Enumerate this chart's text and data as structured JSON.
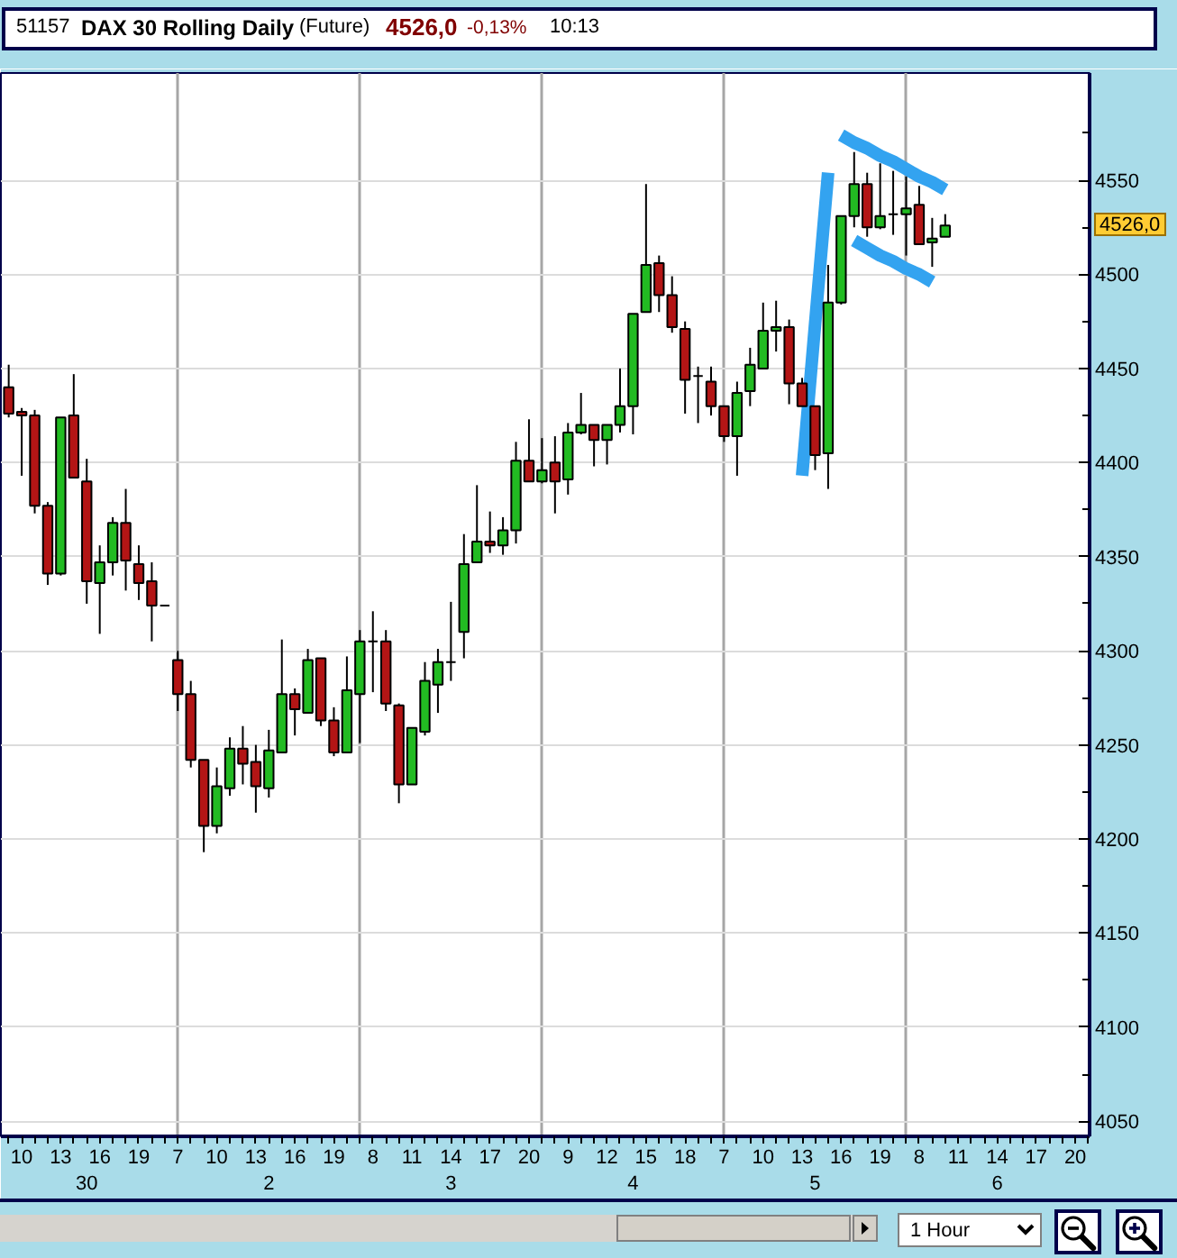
{
  "chart_data": {
    "type": "candlestick",
    "title": "DAX 30 Rolling Daily",
    "subtitle": "(Future)",
    "annotations": [
      "51157",
      "4526,0",
      "-0,13%",
      "10:13",
      "1 Hour",
      "4526,0"
    ],
    "categories": [
      null,
      "10",
      null,
      null,
      "13",
      null,
      "\n30",
      "16",
      null,
      null,
      "19",
      null,
      null,
      "7",
      null,
      null,
      "10",
      null,
      null,
      "13",
      "\n2",
      null,
      "16",
      null,
      null,
      "19",
      null,
      null,
      "8",
      null,
      null,
      "11",
      null,
      null,
      "14\n3",
      null,
      null,
      "17",
      null,
      null,
      "20",
      null,
      null,
      "9",
      null,
      null,
      "12",
      null,
      "\n4",
      "15",
      null,
      null,
      "18",
      null,
      null,
      "7",
      null,
      null,
      "10",
      null,
      null,
      "13",
      "\n5",
      null,
      "16",
      null,
      null,
      "19",
      null,
      null,
      "8",
      null,
      null,
      "11",
      null,
      null,
      "14\n6",
      null,
      null,
      "17",
      null,
      null,
      "20",
      null
    ],
    "ohlc": [
      [
        4440,
        4452,
        4424,
        4426
      ],
      [
        4427,
        4429,
        4393,
        4425
      ],
      [
        4425,
        4428,
        4373,
        4377
      ],
      [
        4377,
        4379,
        4335,
        4341
      ],
      [
        4341,
        4424,
        4340,
        4424
      ],
      [
        4425,
        4447,
        4392,
        4392
      ],
      [
        4390,
        4402,
        4325,
        4337
      ],
      [
        4336,
        4356,
        4309,
        4347
      ],
      [
        4347,
        4371,
        4340,
        4368
      ],
      [
        4368,
        4386,
        4332,
        4348
      ],
      [
        4346,
        4356,
        4327,
        4336
      ],
      [
        4337,
        4347,
        4305,
        4324
      ],
      [
        4324,
        4324,
        4324,
        4324
      ],
      [
        4295,
        4300,
        4268,
        4277
      ],
      [
        4277,
        4284,
        4238,
        4242
      ],
      [
        4242,
        4242,
        4193,
        4207
      ],
      [
        4207,
        4238,
        4203,
        4228
      ],
      [
        4227,
        4254,
        4223,
        4248
      ],
      [
        4248,
        4260,
        4229,
        4240
      ],
      [
        4241,
        4250,
        4214,
        4228
      ],
      [
        4227,
        4258,
        4222,
        4247
      ],
      [
        4246,
        4306,
        4246,
        4277
      ],
      [
        4277,
        4280,
        4255,
        4269
      ],
      [
        4267,
        4301,
        4267,
        4295
      ],
      [
        4296,
        4296,
        4260,
        4263
      ],
      [
        4263,
        4270,
        4244,
        4246
      ],
      [
        4246,
        4297,
        4246,
        4279
      ],
      [
        4277,
        4311,
        4251,
        4305
      ],
      [
        4305,
        4321,
        4278,
        4305
      ],
      [
        4305,
        4311,
        4268,
        4272
      ],
      [
        4271,
        4272,
        4219,
        4229
      ],
      [
        4229,
        4259,
        4229,
        4259
      ],
      [
        4257,
        4294,
        4255,
        4284
      ],
      [
        4282,
        4301,
        4267,
        4294
      ],
      [
        4294,
        4326,
        4284,
        4294
      ],
      [
        4310,
        4362,
        4296,
        4346
      ],
      [
        4347,
        4388,
        4347,
        4358
      ],
      [
        4358,
        4374,
        4352,
        4356
      ],
      [
        4356,
        4371,
        4351,
        4364
      ],
      [
        4364,
        4411,
        4357,
        4401
      ],
      [
        4401,
        4423,
        4390,
        4390
      ],
      [
        4390,
        4413,
        4389,
        4396
      ],
      [
        4400,
        4414,
        4373,
        4390
      ],
      [
        4391,
        4421,
        4383,
        4416
      ],
      [
        4416,
        4437,
        4415,
        4420
      ],
      [
        4420,
        4420,
        4398,
        4412
      ],
      [
        4412,
        4420,
        4399,
        4420
      ],
      [
        4420,
        4450,
        4416,
        4430
      ],
      [
        4430,
        4479,
        4415,
        4479
      ],
      [
        4480,
        4548,
        4480,
        4505
      ],
      [
        4506,
        4510,
        4480,
        4489
      ],
      [
        4489,
        4499,
        4469,
        4472
      ],
      [
        4471,
        4475,
        4426,
        4444
      ],
      [
        4446,
        4451,
        4421,
        4446
      ],
      [
        4443,
        4451,
        4425,
        4430
      ],
      [
        4430,
        4430,
        4411,
        4414
      ],
      [
        4414,
        4443,
        4393,
        4437
      ],
      [
        4438,
        4461,
        4430,
        4452
      ],
      [
        4450,
        4485,
        4450,
        4470
      ],
      [
        4470,
        4486,
        4459,
        4472
      ],
      [
        4472,
        4476,
        4431,
        4442
      ],
      [
        4442,
        4445,
        4430,
        4430
      ],
      [
        4430,
        4430,
        4396,
        4404
      ],
      [
        4405,
        4505,
        4386,
        4485
      ],
      [
        4485,
        4531,
        4484,
        4531
      ],
      [
        4531,
        4565,
        4525,
        4548
      ],
      [
        4548,
        4554,
        4520,
        4525
      ],
      [
        4525,
        4559,
        4524,
        4531
      ],
      [
        4532,
        4555,
        4521,
        4532
      ],
      [
        4532,
        4552,
        4510,
        4535
      ],
      [
        4537,
        4547,
        4516,
        4516
      ],
      [
        4517,
        4530,
        4504,
        4519
      ],
      [
        4520,
        4532,
        4520,
        4526
      ],
      null,
      null,
      null,
      null,
      null,
      null,
      null,
      null,
      null,
      null,
      null
    ],
    "colors": [
      "#b31515",
      "#b31515",
      "#b31515",
      "#b31515",
      "#22bb22",
      "#b31515",
      "#b31515",
      "#22bb22",
      "#22bb22",
      "#b31515",
      "#b31515",
      "#b31515",
      "#000000",
      "#b31515",
      "#b31515",
      "#b31515",
      "#22bb22",
      "#22bb22",
      "#b31515",
      "#b31515",
      "#22bb22",
      "#22bb22",
      "#b31515",
      "#22bb22",
      "#b31515",
      "#b31515",
      "#22bb22",
      "#22bb22",
      "#000000",
      "#b31515",
      "#b31515",
      "#22bb22",
      "#22bb22",
      "#22bb22",
      "#000000",
      "#22bb22",
      "#22bb22",
      "#b31515",
      "#22bb22",
      "#22bb22",
      "#b31515",
      "#22bb22",
      "#b31515",
      "#22bb22",
      "#22bb22",
      "#b31515",
      "#22bb22",
      "#22bb22",
      "#22bb22",
      "#22bb22",
      "#b31515",
      "#b31515",
      "#b31515",
      "#000000",
      "#b31515",
      "#b31515",
      "#22bb22",
      "#22bb22",
      "#22bb22",
      "#22bb22",
      "#b31515",
      "#b31515",
      "#b31515",
      "#22bb22",
      "#22bb22",
      "#22bb22",
      "#b31515",
      "#22bb22",
      "#000000",
      "#22bb22",
      "#b31515",
      "#22bb22",
      "#22bb22",
      null,
      null,
      null,
      null,
      null,
      null,
      null,
      null,
      null,
      null,
      null
    ],
    "series": [
      {
        "type": "line",
        "color": "#33a3f0",
        "values": [
          null,
          null,
          null,
          null,
          null,
          null,
          null,
          null,
          null,
          null,
          null,
          null,
          null,
          null,
          null,
          null,
          null,
          null,
          null,
          null,
          null,
          null,
          null,
          null,
          null,
          null,
          null,
          null,
          null,
          null,
          null,
          null,
          null,
          null,
          null,
          null,
          null,
          null,
          null,
          null,
          null,
          null,
          null,
          null,
          null,
          null,
          null,
          null,
          null,
          null,
          null,
          null,
          null,
          null,
          null,
          null,
          null,
          null,
          null,
          null,
          null,
          4393,
          4474,
          4554,
          null,
          null,
          null,
          null,
          null,
          null,
          null,
          null,
          null,
          null,
          null,
          null,
          null,
          null,
          null,
          null,
          null,
          null,
          null,
          null
        ]
      },
      {
        "type": "line",
        "color": "#33a3f0",
        "values": [
          null,
          null,
          null,
          null,
          null,
          null,
          null,
          null,
          null,
          null,
          null,
          null,
          null,
          null,
          null,
          null,
          null,
          null,
          null,
          null,
          null,
          null,
          null,
          null,
          null,
          null,
          null,
          null,
          null,
          null,
          null,
          null,
          null,
          null,
          null,
          null,
          null,
          null,
          null,
          null,
          null,
          null,
          null,
          null,
          null,
          null,
          null,
          null,
          null,
          null,
          null,
          null,
          null,
          null,
          null,
          null,
          null,
          null,
          null,
          null,
          null,
          null,
          null,
          null,
          4574,
          4570,
          4567,
          4563,
          4560,
          4556,
          4552,
          4549,
          4545,
          null,
          null,
          null,
          null,
          null,
          null,
          null,
          null,
          null,
          null,
          null
        ]
      },
      {
        "type": "line",
        "color": "#33a3f0",
        "values": [
          null,
          null,
          null,
          null,
          null,
          null,
          null,
          null,
          null,
          null,
          null,
          null,
          null,
          null,
          null,
          null,
          null,
          null,
          null,
          null,
          null,
          null,
          null,
          null,
          null,
          null,
          null,
          null,
          null,
          null,
          null,
          null,
          null,
          null,
          null,
          null,
          null,
          null,
          null,
          null,
          null,
          null,
          null,
          null,
          null,
          null,
          null,
          null,
          null,
          null,
          null,
          null,
          null,
          null,
          null,
          null,
          null,
          null,
          null,
          null,
          null,
          null,
          null,
          null,
          null,
          4518,
          4514,
          4510,
          4507,
          4503,
          4500,
          4496,
          null,
          null,
          null,
          null,
          null,
          null,
          null,
          null,
          null,
          null,
          null,
          null
        ]
      }
    ],
    "ylim": [
      4042,
      4607
    ],
    "yticks": [
      4050,
      {
        "value": 4075,
        "label": null
      },
      4100,
      {
        "value": 4125,
        "label": null
      },
      4150,
      {
        "value": 4175,
        "label": null
      },
      4200,
      {
        "value": 4225,
        "label": null
      },
      4250,
      {
        "value": 4275,
        "label": null
      },
      4300,
      {
        "value": 4325,
        "label": null
      },
      4350,
      {
        "value": 4375,
        "label": null
      },
      4400,
      {
        "value": 4425,
        "label": null
      },
      4450,
      {
        "value": 4475,
        "label": null
      },
      4500,
      {
        "value": 4525,
        "label": null
      },
      4550,
      {
        "value": 4575,
        "label": null
      }
    ],
    "grid": true
  }
}
